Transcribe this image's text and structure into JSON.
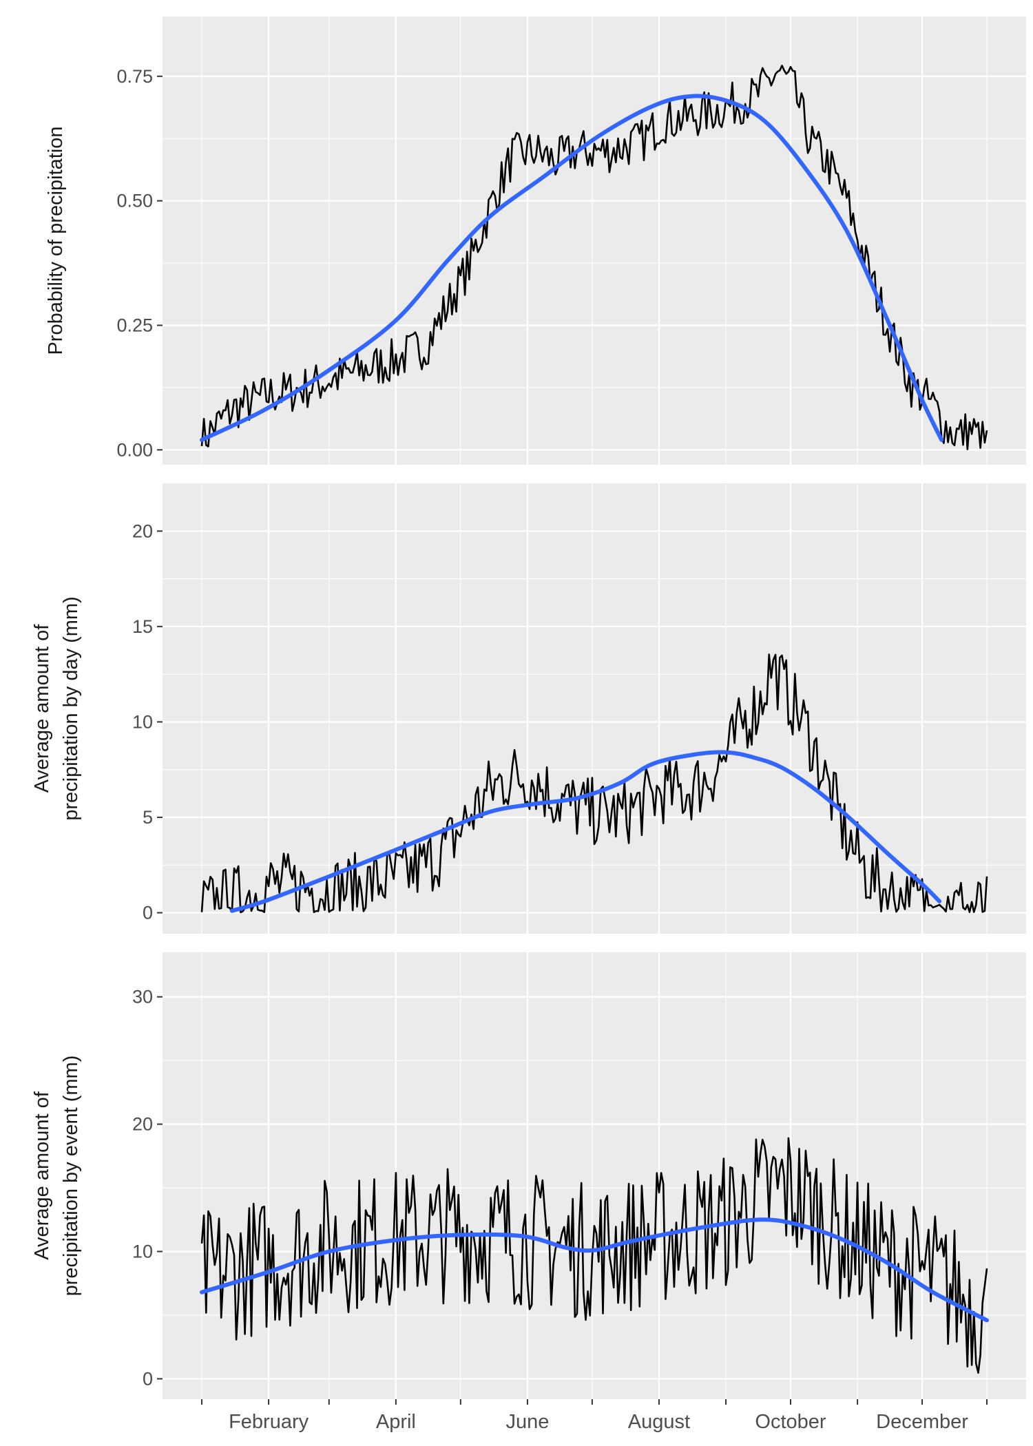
{
  "chart_data": {
    "type": "line",
    "x_axis": {
      "type": "date",
      "domain": [
        "2001-01-01",
        "2001-12-31"
      ],
      "tick_labels": [
        "February",
        "April",
        "June",
        "August",
        "October",
        "December"
      ],
      "major_ticks": [
        "2001-02-01",
        "2001-04-01",
        "2001-06-01",
        "2001-08-01",
        "2001-10-01",
        "2001-12-01"
      ],
      "minor_ticks": [
        "2001-01-01",
        "2001-03-01",
        "2001-05-01",
        "2001-07-01",
        "2001-09-01",
        "2001-11-01",
        "2001-12-31"
      ]
    },
    "grid": true,
    "background": "#ebebeb",
    "grid_color": "#ffffff",
    "series_colors": {
      "daily": "#000000",
      "smooth": "#3366ff"
    },
    "panels": [
      {
        "id": "probability",
        "ylabel": [
          "Probability of precipitation"
        ],
        "ylim": [
          -0.03,
          0.87
        ],
        "yticks": [
          0,
          0.25,
          0.5,
          0.75
        ],
        "ytick_labels": [
          "0.00",
          "0.25",
          "0.50",
          "0.75"
        ],
        "daily_anchors": [
          [
            1,
            0.02
          ],
          [
            15,
            0.08
          ],
          [
            32,
            0.11
          ],
          [
            46,
            0.12
          ],
          [
            60,
            0.14
          ],
          [
            75,
            0.16
          ],
          [
            91,
            0.18
          ],
          [
            105,
            0.21
          ],
          [
            115,
            0.29
          ],
          [
            125,
            0.37
          ],
          [
            135,
            0.49
          ],
          [
            145,
            0.59
          ],
          [
            155,
            0.6
          ],
          [
            165,
            0.58
          ],
          [
            175,
            0.6
          ],
          [
            190,
            0.6
          ],
          [
            205,
            0.62
          ],
          [
            215,
            0.66
          ],
          [
            230,
            0.67
          ],
          [
            245,
            0.69
          ],
          [
            258,
            0.71
          ],
          [
            268,
            0.76
          ],
          [
            275,
            0.73
          ],
          [
            283,
            0.62
          ],
          [
            292,
            0.57
          ],
          [
            300,
            0.5
          ],
          [
            310,
            0.36
          ],
          [
            320,
            0.24
          ],
          [
            330,
            0.13
          ],
          [
            340,
            0.09
          ],
          [
            347,
            0.04
          ],
          [
            352,
            0.03
          ],
          [
            358,
            0.04
          ],
          [
            365,
            0.01
          ]
        ],
        "daily_noise": 0.045,
        "smooth": [
          [
            1,
            0.02
          ],
          [
            30,
            0.08
          ],
          [
            60,
            0.16
          ],
          [
            91,
            0.26
          ],
          [
            115,
            0.38
          ],
          [
            135,
            0.47
          ],
          [
            160,
            0.55
          ],
          [
            185,
            0.63
          ],
          [
            210,
            0.69
          ],
          [
            228,
            0.71
          ],
          [
            245,
            0.7
          ],
          [
            262,
            0.66
          ],
          [
            280,
            0.57
          ],
          [
            300,
            0.44
          ],
          [
            320,
            0.25
          ],
          [
            335,
            0.1
          ],
          [
            344,
            0.02
          ]
        ]
      },
      {
        "id": "amount-day",
        "ylabel": [
          "Average amount of",
          "precipitation by day (mm)"
        ],
        "ylim": [
          -1.1,
          22.5
        ],
        "yticks": [
          0,
          5,
          10,
          15,
          20
        ],
        "ytick_labels": [
          "0",
          "5",
          "10",
          "15",
          "20"
        ],
        "daily_anchors": [
          [
            1,
            0.3
          ],
          [
            25,
            1
          ],
          [
            32,
            1.5
          ],
          [
            60,
            1.2
          ],
          [
            75,
            1.4
          ],
          [
            91,
            1.8
          ],
          [
            105,
            2.5
          ],
          [
            115,
            3.5
          ],
          [
            125,
            5
          ],
          [
            135,
            6.5
          ],
          [
            145,
            7.2
          ],
          [
            155,
            7
          ],
          [
            165,
            6
          ],
          [
            175,
            5.5
          ],
          [
            185,
            5.2
          ],
          [
            195,
            5.1
          ],
          [
            205,
            5.7
          ],
          [
            215,
            6.4
          ],
          [
            225,
            6.3
          ],
          [
            235,
            7
          ],
          [
            245,
            8.3
          ],
          [
            252,
            10
          ],
          [
            260,
            11
          ],
          [
            265,
            13
          ],
          [
            275,
            11
          ],
          [
            282,
            9.5
          ],
          [
            290,
            7
          ],
          [
            300,
            4
          ],
          [
            310,
            2
          ],
          [
            320,
            1
          ],
          [
            330,
            0.6
          ],
          [
            338,
            0.5
          ],
          [
            345,
            0.3
          ],
          [
            365,
            0.2
          ]
        ],
        "daily_noise": 1.8,
        "smooth": [
          [
            15,
            0.1
          ],
          [
            30,
            0.6
          ],
          [
            60,
            1.9
          ],
          [
            91,
            3.3
          ],
          [
            115,
            4.4
          ],
          [
            135,
            5.3
          ],
          [
            155,
            5.7
          ],
          [
            175,
            6
          ],
          [
            195,
            6.8
          ],
          [
            210,
            7.8
          ],
          [
            230,
            8.3
          ],
          [
            245,
            8.4
          ],
          [
            258,
            8.1
          ],
          [
            270,
            7.6
          ],
          [
            285,
            6.5
          ],
          [
            300,
            5.1
          ],
          [
            320,
            3
          ],
          [
            335,
            1.5
          ],
          [
            343,
            0.6
          ]
        ]
      },
      {
        "id": "amount-event",
        "ylabel": [
          "Average amount of",
          "precipitation by event (mm)"
        ],
        "ylim": [
          -1.6,
          33.5
        ],
        "yticks": [
          0,
          10,
          20,
          30
        ],
        "ytick_labels": [
          "0",
          "10",
          "20",
          "30"
        ],
        "daily_anchors": [
          [
            1,
            8
          ],
          [
            32,
            9
          ],
          [
            60,
            10.5
          ],
          [
            91,
            11
          ],
          [
            120,
            11.5
          ],
          [
            150,
            11
          ],
          [
            180,
            10
          ],
          [
            210,
            11
          ],
          [
            240,
            12
          ],
          [
            258,
            14
          ],
          [
            270,
            15
          ],
          [
            280,
            14
          ],
          [
            300,
            11
          ],
          [
            320,
            9
          ],
          [
            340,
            8
          ],
          [
            365,
            5
          ]
        ],
        "daily_noise": 5.5,
        "smooth": [
          [
            1,
            6.8
          ],
          [
            32,
            8.4
          ],
          [
            60,
            10
          ],
          [
            91,
            10.9
          ],
          [
            120,
            11.3
          ],
          [
            150,
            11.2
          ],
          [
            170,
            10.3
          ],
          [
            183,
            10.1
          ],
          [
            200,
            10.8
          ],
          [
            230,
            11.8
          ],
          [
            260,
            12.5
          ],
          [
            280,
            12
          ],
          [
            300,
            10.8
          ],
          [
            320,
            9
          ],
          [
            340,
            6.8
          ],
          [
            365,
            4.6
          ]
        ]
      }
    ]
  }
}
